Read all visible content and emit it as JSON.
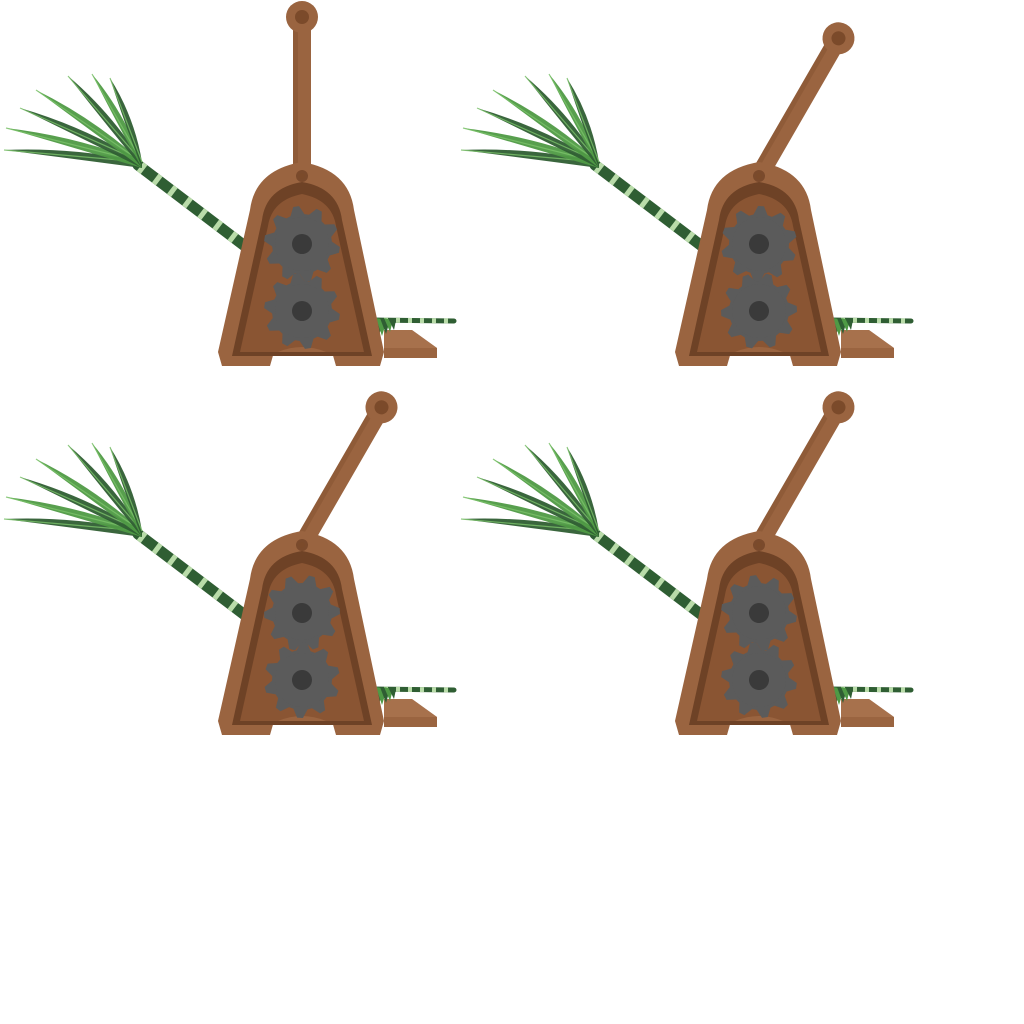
{
  "sprite_sheet": {
    "object": "grass-launcher-machine",
    "frame_count": 4,
    "colors": {
      "wood": "#9a6440",
      "wood_dark": "#7a4a2c",
      "wood_inner": "#8a5533",
      "wood_deep": "#6e4226",
      "pivot": "#7b4a2a",
      "gear": "#5b5b5b",
      "gear_hub": "#3a3a3a",
      "grass_dark": "#2f5e33",
      "grass_light": "#4f9a45",
      "grass_highlight": "#7cc36a",
      "stripe": "#b9dca9",
      "background": "#ffffff"
    },
    "frames": [
      {
        "id": "frame-1",
        "lever_angle_deg": 0,
        "gear_rotation_deg": 0
      },
      {
        "id": "frame-2",
        "lever_angle_deg": 30,
        "gear_rotation_deg": 12
      },
      {
        "id": "frame-3",
        "lever_angle_deg": 30,
        "gear_rotation_deg": 24
      },
      {
        "id": "frame-4",
        "lever_angle_deg": 30,
        "gear_rotation_deg": 36
      }
    ]
  }
}
